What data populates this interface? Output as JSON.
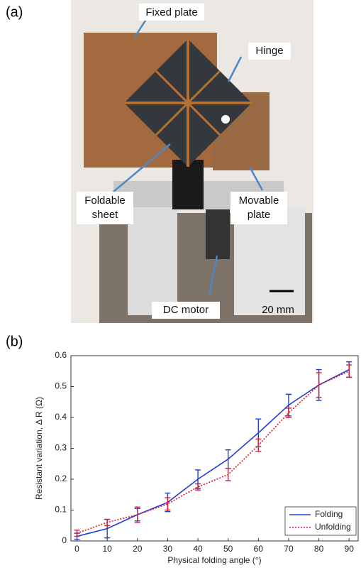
{
  "figure": {
    "panel_labels": [
      "(a)",
      "(b)"
    ],
    "annotations": [
      {
        "lines": [
          "Fixed plate"
        ]
      },
      {
        "lines": [
          "Hinge"
        ]
      },
      {
        "lines": [
          "Foldable",
          "sheet"
        ]
      },
      {
        "lines": [
          "Movable",
          "plate"
        ]
      },
      {
        "lines": [
          "DC motor"
        ]
      }
    ],
    "scale_bar": "20 mm"
  },
  "chart_data": {
    "type": "line",
    "x_label": "Physical folding angle (°)",
    "y_label": "Resistant variation,  Δ R (Ω)",
    "x": [
      0,
      10,
      20,
      30,
      40,
      50,
      60,
      70,
      80,
      90
    ],
    "series": [
      {
        "name": "Folding",
        "color": "#1f3fd1",
        "line_style": "solid",
        "values": [
          0.015,
          0.04,
          0.085,
          0.125,
          0.2,
          0.265,
          0.35,
          0.44,
          0.505,
          0.555
        ],
        "errors": [
          0.01,
          0.03,
          0.02,
          0.03,
          0.03,
          0.03,
          0.045,
          0.035,
          0.05,
          0.025
        ]
      },
      {
        "name": "Unfolding",
        "color": "#e0192a",
        "line_style": "dotted",
        "values": [
          0.025,
          0.06,
          0.085,
          0.12,
          0.175,
          0.215,
          0.31,
          0.415,
          0.505,
          0.55
        ],
        "errors": [
          0.01,
          0.01,
          0.025,
          0.02,
          0.01,
          0.02,
          0.02,
          0.015,
          0.04,
          0.02
        ]
      }
    ],
    "xlim": [
      -2,
      93
    ],
    "xticks": [
      0,
      10,
      20,
      30,
      40,
      50,
      60,
      70,
      80,
      90
    ],
    "ylim": [
      0,
      0.6
    ],
    "yticks": [
      0,
      0.1,
      0.2,
      0.3,
      0.4,
      0.5,
      0.6
    ],
    "legend": "lower right"
  }
}
